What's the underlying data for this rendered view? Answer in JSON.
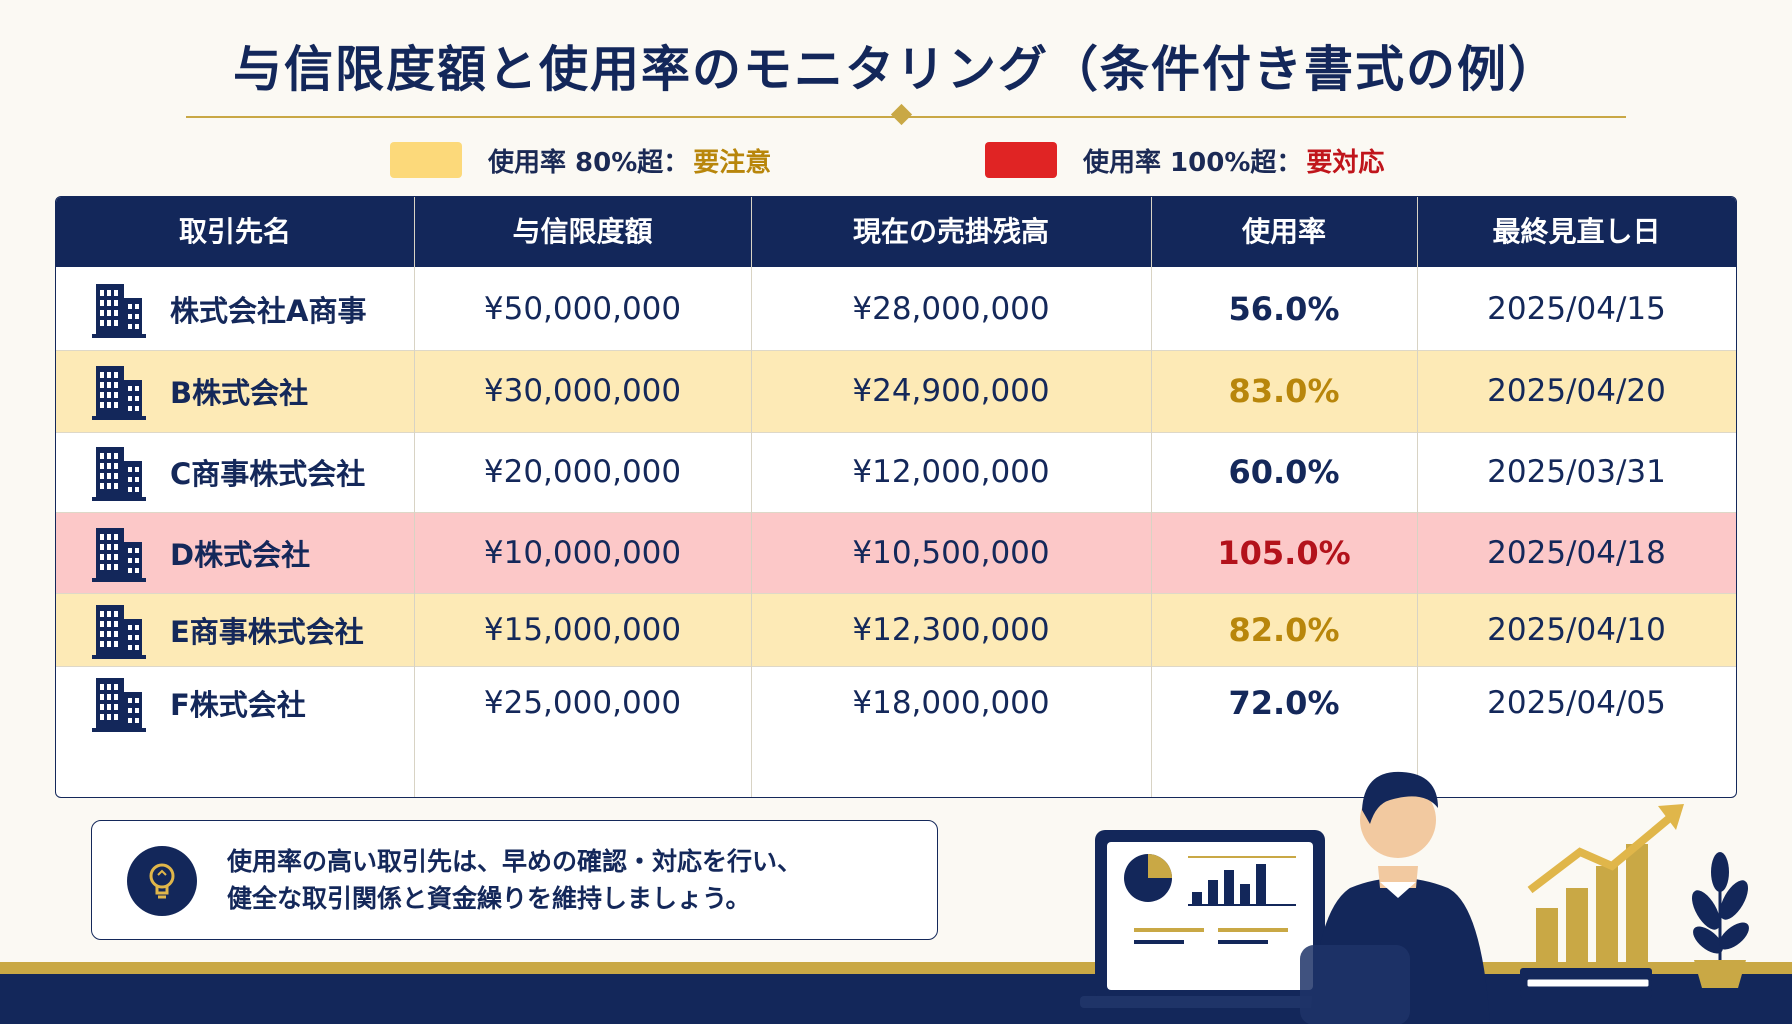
{
  "title": "与信限度額と使用率のモニタリング（条件付き書式の例）",
  "legend": [
    {
      "condition": "使用率 80%超：",
      "action": "要注意",
      "swatch_color": "#fcd97a",
      "action_color": "#b8860b"
    },
    {
      "condition": "使用率 100%超：",
      "action": "要対応",
      "swatch_color": "#e02424",
      "action_color": "#c0151b"
    }
  ],
  "table": {
    "headers": [
      "取引先名",
      "与信限度額",
      "現在の売掛残高",
      "使用率",
      "最終見直し日"
    ],
    "rows": [
      {
        "name": "株式会社A商事",
        "limit": "¥50,000,000",
        "balance": "¥28,000,000",
        "rate": "56.0%",
        "date": "2025/04/15",
        "status": "normal"
      },
      {
        "name": "B株式会社",
        "limit": "¥30,000,000",
        "balance": "¥24,900,000",
        "rate": "83.0%",
        "date": "2025/04/20",
        "status": "caution"
      },
      {
        "name": "C商事株式会社",
        "limit": "¥20,000,000",
        "balance": "¥12,000,000",
        "rate": "60.0%",
        "date": "2025/03/31",
        "status": "normal"
      },
      {
        "name": "D株式会社",
        "limit": "¥10,000,000",
        "balance": "¥10,500,000",
        "rate": "105.0%",
        "date": "2025/04/18",
        "status": "action"
      },
      {
        "name": "E商事株式会社",
        "limit": "¥15,000,000",
        "balance": "¥12,300,000",
        "rate": "82.0%",
        "date": "2025/04/10",
        "status": "caution"
      },
      {
        "name": "F株式会社",
        "limit": "¥25,000,000",
        "balance": "¥18,000,000",
        "rate": "72.0%",
        "date": "2025/04/05",
        "status": "normal"
      }
    ]
  },
  "status_colors": {
    "normal": {
      "bg": "#ffffff",
      "rate": "#14285a"
    },
    "caution": {
      "bg": "#fdeab6",
      "rate": "#b8860b"
    },
    "action": {
      "bg": "#fcc8c8",
      "rate": "#b3121b"
    }
  },
  "icons": {
    "company": "building-icon",
    "tip": "lightbulb-icon"
  },
  "tip": {
    "line1": "使用率の高い取引先は、早めの確認・対応を行い、",
    "line2": "健全な取引関係と資金繰りを維持しましょう。"
  }
}
